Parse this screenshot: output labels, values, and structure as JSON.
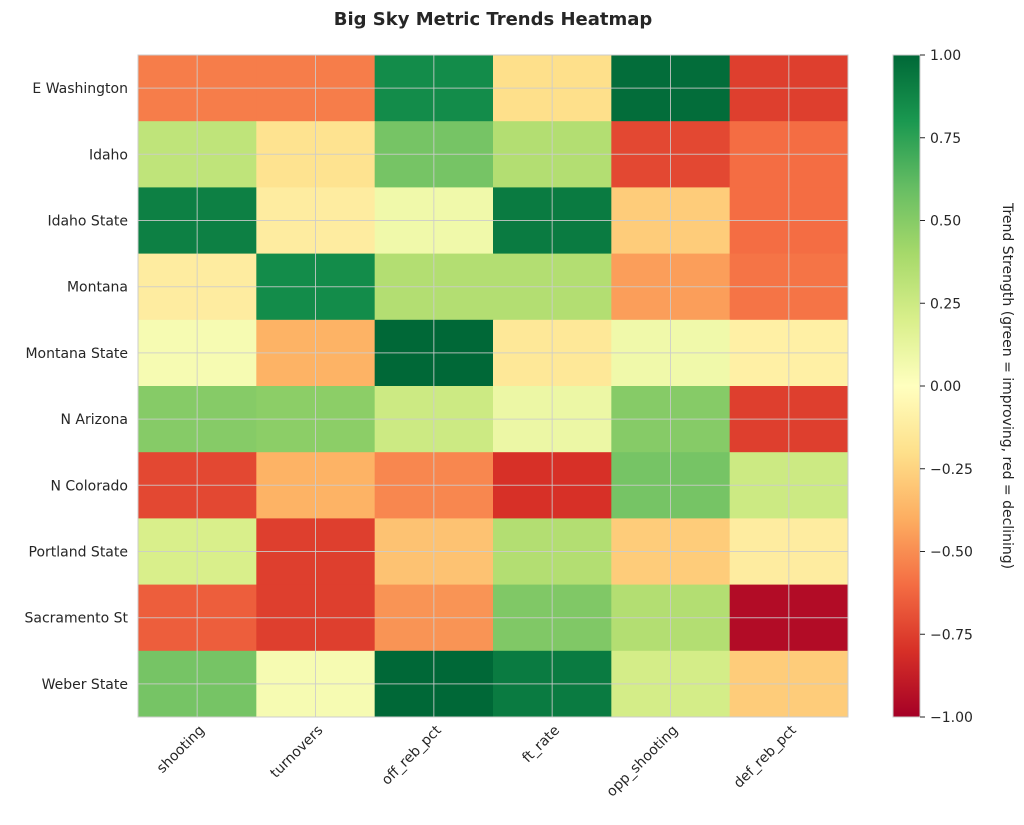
{
  "chart_data": {
    "type": "heatmap",
    "title": "Big Sky Metric Trends Heatmap",
    "rows": [
      "E Washington",
      "Idaho",
      "Idaho State",
      "Montana",
      "Montana State",
      "N Arizona",
      "N Colorado",
      "Portland State",
      "Sacramento St",
      "Weber State"
    ],
    "columns": [
      "shooting",
      "turnovers",
      "off_reb_pct",
      "ft_rate",
      "opp_shooting",
      "def_reb_pct"
    ],
    "values": [
      [
        -0.55,
        -0.55,
        0.85,
        -0.2,
        0.98,
        -0.75
      ],
      [
        0.3,
        -0.18,
        0.55,
        0.35,
        -0.72,
        -0.6
      ],
      [
        0.9,
        -0.12,
        0.08,
        0.92,
        -0.28,
        -0.6
      ],
      [
        -0.12,
        0.85,
        0.35,
        0.35,
        -0.45,
        -0.58
      ],
      [
        0.05,
        -0.38,
        1.0,
        -0.15,
        0.08,
        -0.1
      ],
      [
        0.5,
        0.48,
        0.25,
        0.1,
        0.5,
        -0.75
      ],
      [
        -0.72,
        -0.38,
        -0.52,
        -0.8,
        0.55,
        0.25
      ],
      [
        0.2,
        -0.75,
        -0.32,
        0.35,
        -0.28,
        -0.12
      ],
      [
        -0.65,
        -0.75,
        -0.48,
        0.52,
        0.35,
        -0.95
      ],
      [
        0.55,
        0.05,
        1.0,
        0.92,
        0.22,
        -0.28
      ]
    ],
    "vmin": -1.0,
    "vmax": 1.0,
    "colormap": "RdYlGn",
    "grid": true,
    "colorbar": {
      "label": "Trend Strength (green = improving, red = declining)",
      "ticks": [
        "1.00",
        "0.75",
        "0.50",
        "0.25",
        "0.00",
        "−0.25",
        "−0.50",
        "−0.75",
        "−1.00"
      ]
    }
  }
}
